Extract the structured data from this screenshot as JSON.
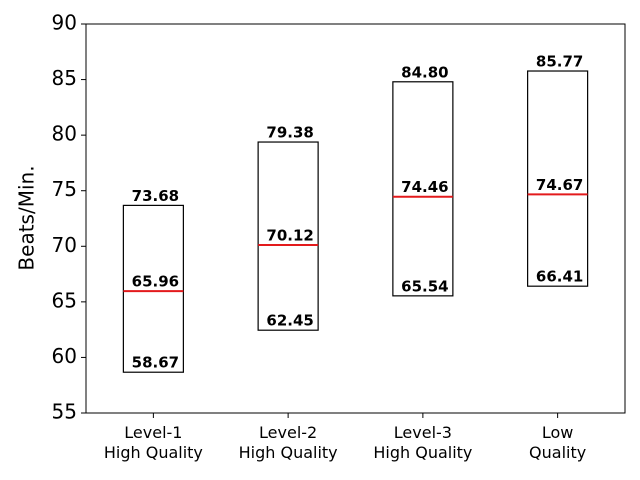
{
  "chart_data": {
    "type": "range-box",
    "ylabel": "Beats/Min.",
    "categories": [
      "Level-1\nHigh Quality",
      "Level-2\nHigh Quality",
      "Level-3\nHigh Quality",
      "Low\nQuality"
    ],
    "lows": [
      58.67,
      62.45,
      65.54,
      66.41
    ],
    "low_labels": [
      "58.67",
      "62.45",
      "65.54",
      "66.41"
    ],
    "medians": [
      65.96,
      70.12,
      74.46,
      74.67
    ],
    "median_labels": [
      "65.96",
      "70.12",
      "74.46",
      "74.67"
    ],
    "highs": [
      73.68,
      79.38,
      84.8,
      85.77
    ],
    "high_labels": [
      "73.68",
      "79.38",
      "84.80",
      "85.77"
    ],
    "box_color": "#000000",
    "median_color": "#e31a1c",
    "ylim": [
      55,
      90
    ],
    "yticks": [
      55,
      60,
      65,
      70,
      75,
      80,
      85,
      90
    ]
  }
}
